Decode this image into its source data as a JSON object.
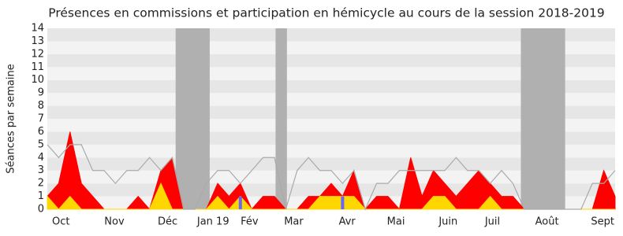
{
  "chart_data": {
    "type": "area",
    "title": "Présences en commissions et participation en hémicycle au cours de la session 2018-2019",
    "y_label": "Séances par semaine",
    "x": [
      0,
      1,
      2,
      3,
      4,
      5,
      6,
      7,
      8,
      9,
      10,
      11,
      12,
      13,
      14,
      15,
      16,
      17,
      18,
      19,
      20,
      21,
      22,
      23,
      24,
      25,
      26,
      27,
      28,
      29,
      30,
      31,
      32,
      33,
      34,
      35,
      36,
      37,
      38,
      39,
      40,
      41,
      42,
      43,
      44,
      45,
      46,
      47,
      48,
      49,
      50
    ],
    "series": [
      {
        "kind": "area",
        "color": "#ff0000",
        "values": [
          1,
          2,
          6,
          2,
          1,
          0,
          0,
          0,
          1,
          0,
          3,
          4,
          0,
          0,
          0,
          2,
          1,
          2,
          0,
          1,
          1,
          0,
          0,
          1,
          1,
          2,
          1,
          3,
          0,
          1,
          1,
          0,
          4,
          1,
          3,
          2,
          1,
          2,
          3,
          2,
          1,
          1,
          0,
          0,
          0,
          0,
          0,
          0,
          0,
          3,
          1
        ]
      },
      {
        "kind": "area",
        "color": "#ffd700",
        "values": [
          1,
          0,
          1,
          0,
          0,
          0,
          0,
          0,
          0,
          0,
          2,
          0,
          0,
          0,
          0,
          1,
          0,
          1,
          0,
          0,
          0,
          0,
          0,
          0,
          1,
          1,
          1,
          1,
          0,
          0,
          0,
          0,
          0,
          0,
          1,
          1,
          0,
          0,
          0,
          1,
          0,
          0,
          0,
          0,
          0,
          0,
          0,
          0,
          0,
          0,
          0
        ]
      },
      {
        "kind": "line",
        "color": "#aaaaaa",
        "values": [
          5,
          4,
          5,
          5,
          3,
          3,
          2,
          3,
          3,
          4,
          3,
          4,
          0,
          0,
          2,
          3,
          3,
          2,
          3,
          4,
          4,
          0,
          3,
          4,
          3,
          3,
          2,
          3,
          0,
          2,
          2,
          3,
          3,
          3,
          3,
          3,
          4,
          3,
          3,
          2,
          3,
          2,
          0,
          0,
          0,
          0,
          0,
          0,
          2,
          2,
          3
        ]
      },
      {
        "kind": "bar",
        "color": "#6666ff",
        "values": [
          null,
          null,
          null,
          null,
          null,
          null,
          null,
          null,
          null,
          null,
          null,
          null,
          null,
          null,
          null,
          null,
          null,
          1,
          null,
          null,
          null,
          null,
          null,
          null,
          null,
          null,
          1,
          null,
          null,
          null,
          null,
          null,
          null,
          null,
          null,
          null,
          null,
          null,
          null,
          null,
          null,
          null,
          null,
          null,
          null,
          null,
          null,
          null,
          null,
          null,
          null
        ]
      }
    ],
    "shaded_ranges": [
      [
        11.3,
        14.3
      ],
      [
        20.1,
        21.1
      ],
      [
        41.7,
        45.6
      ]
    ],
    "shade_color": "#b0b0b0",
    "xlim": [
      0,
      50
    ],
    "ylim": [
      0,
      14
    ],
    "yticks": [
      0,
      1,
      2,
      3,
      4,
      5,
      6,
      7,
      8,
      9,
      10,
      11,
      12,
      13,
      14
    ],
    "xticks": [
      {
        "value": 1.2,
        "label": "Oct"
      },
      {
        "value": 5.9,
        "label": "Nov"
      },
      {
        "value": 10.6,
        "label": "Déc"
      },
      {
        "value": 14.6,
        "label": "Jan 19"
      },
      {
        "value": 17.8,
        "label": "Fév"
      },
      {
        "value": 21.7,
        "label": "Mar"
      },
      {
        "value": 26.4,
        "label": "Avr"
      },
      {
        "value": 30.7,
        "label": "Mai"
      },
      {
        "value": 35.3,
        "label": "Juin"
      },
      {
        "value": 39.2,
        "label": "Juil"
      },
      {
        "value": 44.0,
        "label": "Août"
      },
      {
        "value": 48.9,
        "label": "Sept"
      }
    ],
    "grid": true
  }
}
